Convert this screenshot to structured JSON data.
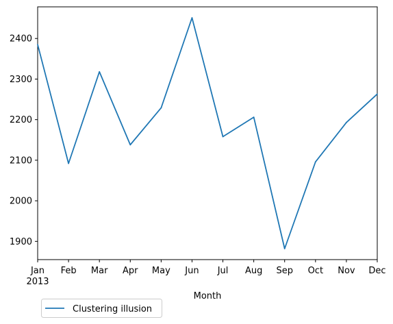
{
  "chart_data": {
    "type": "line",
    "title": "",
    "xlabel": "Month",
    "ylabel": "",
    "categories": [
      "Jan",
      "Feb",
      "Mar",
      "Apr",
      "May",
      "Jun",
      "Jul",
      "Aug",
      "Sep",
      "Oct",
      "Nov",
      "Dec"
    ],
    "year_label": "2013",
    "ylim": [
      1855,
      2478
    ],
    "yticks": [
      1900,
      2000,
      2100,
      2200,
      2300,
      2400
    ],
    "grid": false,
    "legend_position": "lower-left, below axes",
    "series": [
      {
        "name": "Clustering illusion",
        "color": "#1f77b4",
        "values": [
          2385,
          2092,
          2318,
          2138,
          2229,
          2451,
          2158,
          2206,
          1882,
          2096,
          2193,
          2263
        ]
      }
    ]
  }
}
